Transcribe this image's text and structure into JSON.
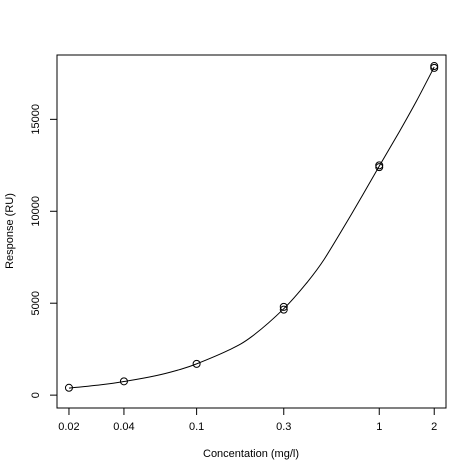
{
  "chart_data": {
    "type": "scatter",
    "title": "",
    "xlabel": "Concentation (mg/l)",
    "ylabel": "Response (RU)",
    "x_scale": "log",
    "xlim": [
      0.0172,
      2.32
    ],
    "ylim": [
      -700,
      18500
    ],
    "x_ticks": [
      0.02,
      0.04,
      0.1,
      0.3,
      1,
      2
    ],
    "x_tick_labels": [
      "0.02",
      "0.04",
      "0.1",
      "0.3",
      "1",
      "2"
    ],
    "y_ticks": [
      0,
      5000,
      10000,
      15000
    ],
    "y_tick_labels": [
      "0",
      "5000",
      "10000",
      "15000"
    ],
    "grid": false,
    "legend": "none",
    "points": [
      {
        "x": 0.02,
        "y": 400
      },
      {
        "x": 0.04,
        "y": 750
      },
      {
        "x": 0.1,
        "y": 1700
      },
      {
        "x": 0.3,
        "y": 4650
      },
      {
        "x": 0.3,
        "y": 4800
      },
      {
        "x": 1,
        "y": 12400
      },
      {
        "x": 1,
        "y": 12500
      },
      {
        "x": 2,
        "y": 17800
      },
      {
        "x": 2,
        "y": 17900
      }
    ],
    "fit_curve": {
      "x": [
        0.02,
        0.03,
        0.04,
        0.06,
        0.08,
        0.1,
        0.15,
        0.2,
        0.3,
        0.4,
        0.5,
        0.7,
        1.0,
        1.3,
        1.6,
        2.0
      ],
      "y": [
        380,
        560,
        740,
        1060,
        1380,
        1700,
        2450,
        3180,
        4700,
        6100,
        7400,
        9800,
        12450,
        14400,
        16000,
        17850
      ]
    }
  }
}
